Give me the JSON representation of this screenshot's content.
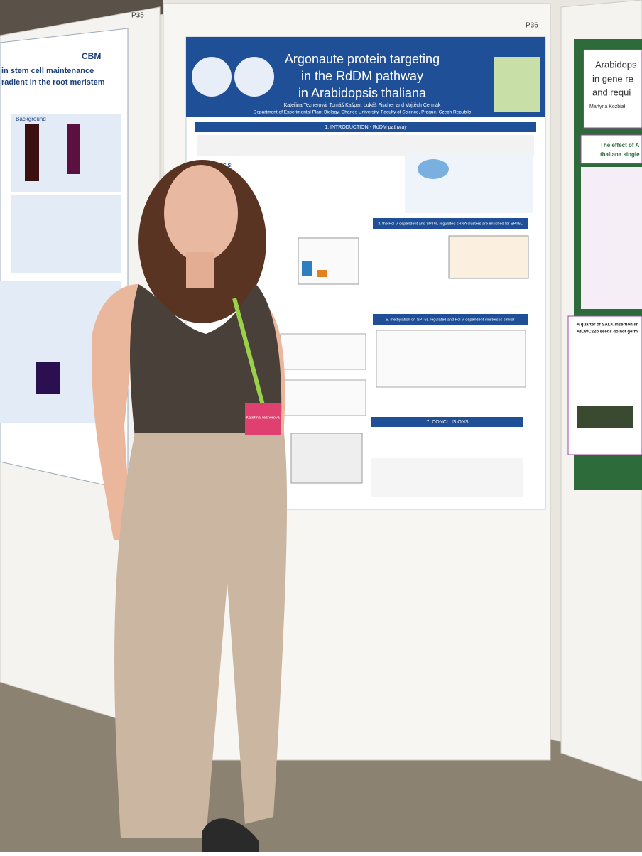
{
  "boards": {
    "left": "P35",
    "center": "P36"
  },
  "center_poster": {
    "title_lines": [
      "Argonaute protein targeting",
      "in the RdDM pathway",
      "in Arabidopsis thaliana"
    ],
    "authors": "Kateřina Teznerová, Tomáš Kašpar, Lukáš Fischer and Vojtěch Čermák",
    "affiliation": "Department of Experimental Plant Biology, Charles University, Faculty of Science, Prague, Czech Republic",
    "sections": [
      "1. INTRODUCTION - RdDM pathway",
      "HYPOTHESIS:",
      "3. the Pol V dependent and SPT6L regulated sRNA clusters are enriched for SPT6L",
      "5. methylation on SPT6L-regulated and Pol V-dependent clusters is similar",
      "7. CONCLUSIONS"
    ]
  },
  "left_poster": {
    "title_lines": [
      "in stem cell maintenance",
      "radient in the root meristem"
    ],
    "logo": "CBM",
    "section": "Background"
  },
  "right_poster": {
    "title_lines": [
      "Arabidops",
      "in gene re",
      "and requi"
    ],
    "author": "Martyna Kozbiał",
    "box_lines": [
      "The effect of A",
      "thaliana single"
    ],
    "result_lines": [
      "A quarter of SALK insertion lin",
      "AtCWC22b seeds do not germ"
    ]
  },
  "badge": "Kateřina Teznerová"
}
